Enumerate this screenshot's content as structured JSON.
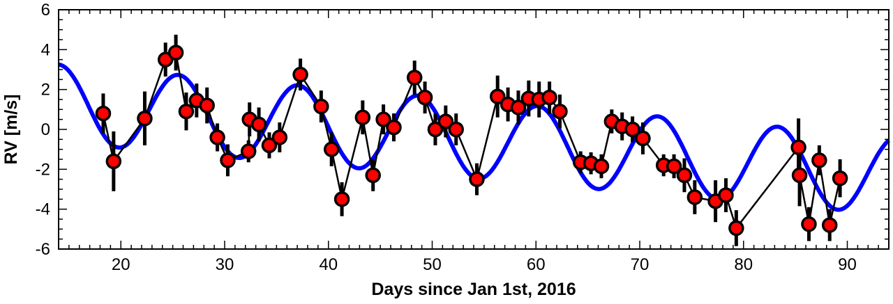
{
  "chart_data": {
    "type": "scatter",
    "xlabel": "Days since Jan 1st, 2016",
    "ylabel": "RV [m/s]",
    "xlim": [
      14,
      94
    ],
    "ylim": [
      -6,
      6
    ],
    "x_ticks": [
      20,
      30,
      40,
      50,
      60,
      70,
      80,
      90
    ],
    "y_ticks": [
      -6,
      -4,
      -2,
      0,
      2,
      4,
      6
    ],
    "grid": false,
    "legend": "none",
    "colors": {
      "points": "#ff0000",
      "point_edge": "#000000",
      "connector": "#000000",
      "model": "#0000ff"
    },
    "series": [
      {
        "kind": "observations",
        "x": [
          18.3,
          19.3,
          22.3,
          24.3,
          25.3,
          26.3,
          27.3,
          28.3,
          29.3,
          30.3,
          32.3,
          32.4,
          33.3,
          34.3,
          35.3,
          37.3,
          39.3,
          40.3,
          41.3,
          43.3,
          44.3,
          45.3,
          46.3,
          48.3,
          49.3,
          50.3,
          51.3,
          52.3,
          54.3,
          56.3,
          57.3,
          58.3,
          59.3,
          60.3,
          61.3,
          62.3,
          64.3,
          65.3,
          66.3,
          67.3,
          68.3,
          69.3,
          70.3,
          72.3,
          73.3,
          74.3,
          75.3,
          77.3,
          78.3,
          79.3,
          85.3,
          85.4,
          86.3,
          87.3,
          88.3,
          89.3
        ],
        "y": [
          0.8,
          -1.6,
          0.55,
          3.5,
          3.85,
          0.9,
          1.45,
          1.2,
          -0.4,
          -1.55,
          -1.1,
          0.5,
          0.25,
          -0.8,
          -0.4,
          2.75,
          1.15,
          -1.0,
          -3.5,
          0.6,
          -2.3,
          0.5,
          0.1,
          2.6,
          1.6,
          0.0,
          0.4,
          0.0,
          -2.5,
          1.65,
          1.25,
          1.1,
          1.55,
          1.5,
          1.6,
          0.9,
          -1.65,
          -1.7,
          -1.85,
          0.4,
          0.15,
          0.0,
          -0.45,
          -1.8,
          -1.85,
          -2.3,
          -3.4,
          -3.6,
          -3.3,
          -4.95,
          -0.9,
          -2.3,
          -4.75,
          -1.55,
          -4.8,
          -2.45
        ],
        "yerr": [
          1.0,
          1.5,
          1.35,
          0.85,
          0.9,
          0.95,
          0.85,
          0.9,
          0.7,
          0.8,
          0.55,
          0.85,
          0.85,
          0.65,
          0.75,
          0.8,
          0.8,
          0.85,
          0.85,
          0.85,
          0.8,
          0.75,
          0.7,
          0.85,
          0.8,
          0.8,
          0.8,
          0.8,
          0.8,
          1.05,
          0.85,
          0.85,
          0.9,
          0.9,
          0.8,
          0.85,
          0.55,
          0.55,
          0.6,
          0.6,
          0.7,
          0.65,
          0.8,
          0.55,
          0.6,
          0.85,
          0.85,
          1.05,
          0.85,
          0.9,
          1.45,
          1.55,
          0.85,
          0.75,
          0.8,
          0.95
        ]
      },
      {
        "kind": "model",
        "description_formula": "sinusoid with linear trend",
        "offset": 1.3,
        "slope": -0.045,
        "amplitude": 1.95,
        "period": 11.55,
        "phase": 0.0,
        "t0": 14
      }
    ]
  }
}
